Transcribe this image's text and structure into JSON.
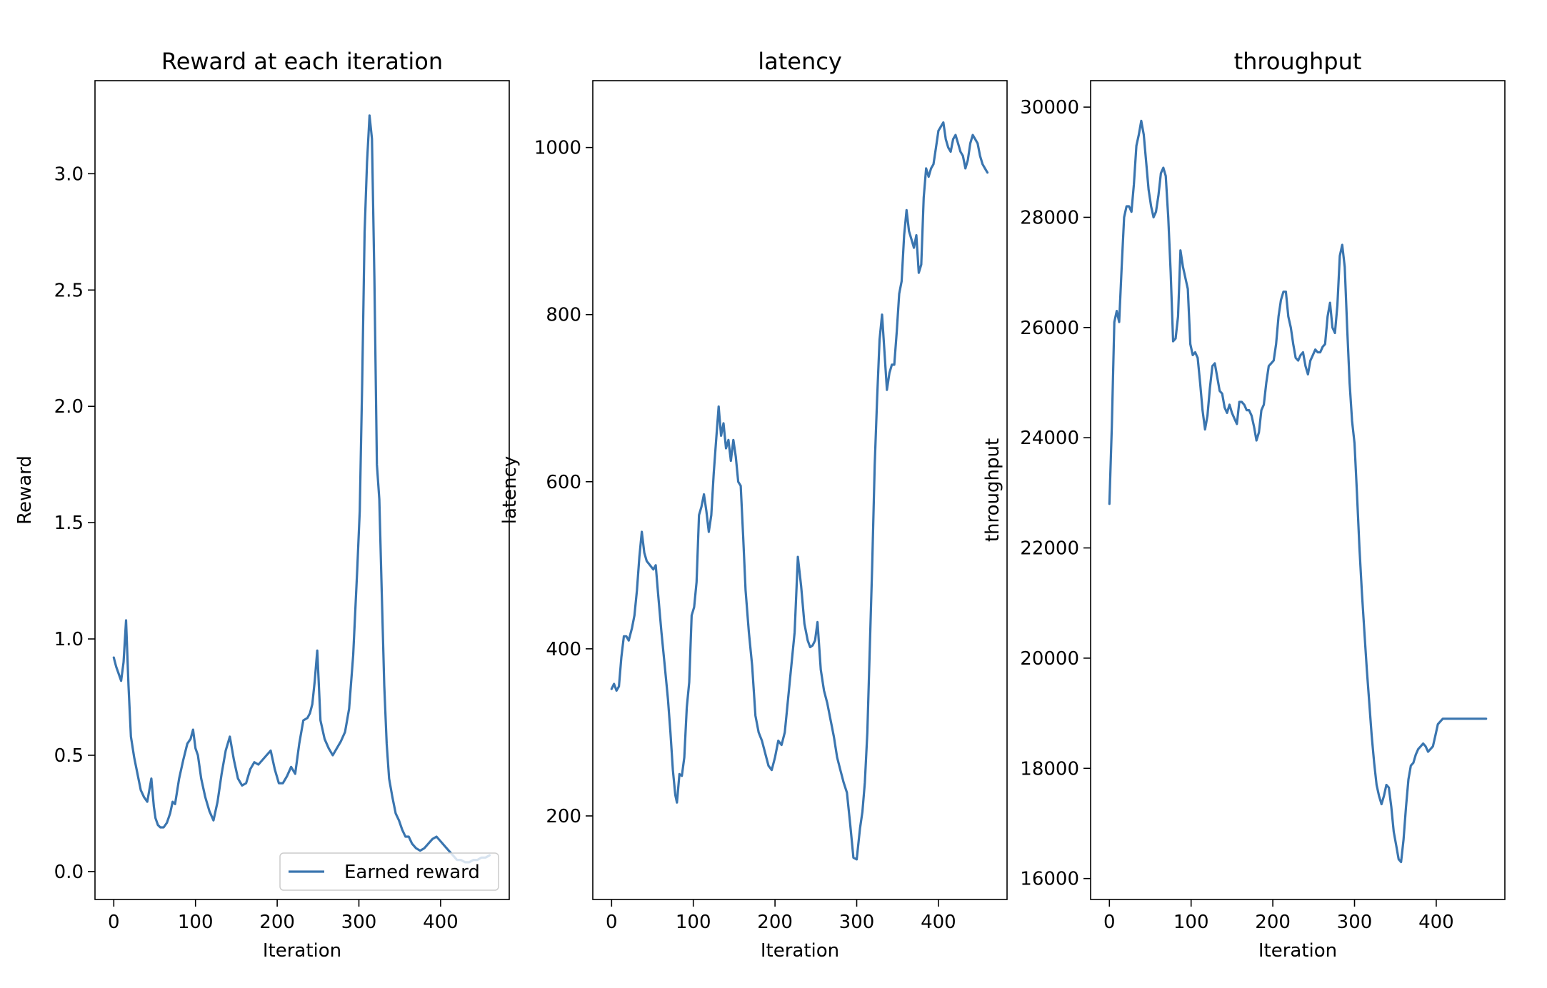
{
  "colors": {
    "series": "#3a75af",
    "axes": "#000000"
  },
  "chart_data": [
    {
      "type": "line",
      "title": "Reward at each iteration",
      "xlabel": "Iteration",
      "ylabel": "Reward",
      "xlim": [
        -23,
        484
      ],
      "ylim": [
        -0.12,
        3.4
      ],
      "xticks": [
        0,
        100,
        200,
        300,
        400
      ],
      "yticks": [
        0.0,
        0.5,
        1.0,
        1.5,
        2.0,
        2.5,
        3.0
      ],
      "ytick_labels": [
        "0.0",
        "0.5",
        "1.0",
        "1.5",
        "2.0",
        "2.5",
        "3.0"
      ],
      "legend": {
        "placement": "lower-right",
        "entries": [
          "Earned reward"
        ]
      },
      "series": [
        {
          "name": "Earned reward",
          "x": [
            0,
            3,
            6,
            9,
            12,
            15,
            18,
            21,
            25,
            29,
            33,
            37,
            41,
            46,
            49,
            51,
            54,
            57,
            61,
            65,
            69,
            72,
            75,
            80,
            85,
            90,
            94,
            97,
            100,
            103,
            107,
            112,
            117,
            122,
            127,
            132,
            137,
            142,
            147,
            152,
            157,
            162,
            167,
            172,
            177,
            182,
            187,
            192,
            197,
            202,
            207,
            212,
            217,
            222,
            227,
            232,
            237,
            240,
            243,
            246,
            249,
            253,
            258,
            263,
            268,
            273,
            278,
            283,
            288,
            293,
            298,
            301,
            304,
            307,
            310,
            313,
            316,
            319,
            322,
            325,
            328,
            331,
            334,
            337,
            341,
            345,
            349,
            353,
            357,
            361,
            365,
            370,
            375,
            380,
            385,
            390,
            395,
            400,
            405,
            410,
            415,
            420,
            425,
            430,
            435,
            440,
            445,
            450,
            455,
            460
          ],
          "values": [
            0.92,
            0.88,
            0.85,
            0.82,
            0.9,
            1.08,
            0.8,
            0.58,
            0.49,
            0.42,
            0.35,
            0.32,
            0.3,
            0.4,
            0.28,
            0.23,
            0.2,
            0.19,
            0.19,
            0.21,
            0.25,
            0.3,
            0.29,
            0.4,
            0.48,
            0.55,
            0.57,
            0.61,
            0.53,
            0.5,
            0.4,
            0.32,
            0.26,
            0.22,
            0.3,
            0.42,
            0.52,
            0.58,
            0.48,
            0.4,
            0.37,
            0.38,
            0.44,
            0.47,
            0.46,
            0.48,
            0.5,
            0.52,
            0.44,
            0.38,
            0.38,
            0.41,
            0.45,
            0.42,
            0.55,
            0.65,
            0.66,
            0.68,
            0.72,
            0.82,
            0.95,
            0.65,
            0.57,
            0.53,
            0.5,
            0.53,
            0.56,
            0.6,
            0.7,
            0.93,
            1.3,
            1.55,
            2.1,
            2.75,
            3.05,
            3.25,
            3.15,
            2.55,
            1.75,
            1.6,
            1.2,
            0.8,
            0.55,
            0.4,
            0.32,
            0.25,
            0.22,
            0.18,
            0.15,
            0.15,
            0.12,
            0.1,
            0.09,
            0.1,
            0.12,
            0.14,
            0.15,
            0.13,
            0.11,
            0.09,
            0.07,
            0.05,
            0.05,
            0.04,
            0.04,
            0.05,
            0.05,
            0.06,
            0.06,
            0.07
          ]
        }
      ]
    },
    {
      "type": "line",
      "title": "latency",
      "xlabel": "Iteration",
      "ylabel": "latency",
      "xlim": [
        -23,
        484
      ],
      "ylim": [
        100,
        1080
      ],
      "xticks": [
        0,
        100,
        200,
        300,
        400
      ],
      "yticks": [
        200,
        400,
        600,
        800,
        1000
      ],
      "ytick_labels": [
        "200",
        "400",
        "600",
        "800",
        "1000"
      ],
      "series": [
        {
          "x": [
            0,
            3,
            6,
            9,
            12,
            15,
            18,
            21,
            25,
            28,
            31,
            34,
            37,
            40,
            43,
            47,
            51,
            54,
            57,
            61,
            65,
            69,
            72,
            75,
            78,
            80,
            83,
            86,
            89,
            92,
            95,
            98,
            101,
            104,
            107,
            110,
            113,
            116,
            119,
            122,
            125,
            128,
            131,
            134,
            137,
            140,
            143,
            146,
            149,
            152,
            155,
            158,
            161,
            164,
            168,
            172,
            176,
            180,
            184,
            188,
            192,
            196,
            200,
            204,
            208,
            212,
            216,
            220,
            224,
            228,
            232,
            236,
            240,
            243,
            246,
            249,
            252,
            256,
            260,
            264,
            268,
            272,
            276,
            280,
            284,
            288,
            292,
            296,
            300,
            304,
            307,
            310,
            313,
            316,
            319,
            322,
            325,
            328,
            331,
            334,
            337,
            340,
            343,
            346,
            349,
            352,
            355,
            358,
            361,
            364,
            367,
            370,
            373,
            376,
            379,
            382,
            385,
            388,
            391,
            394,
            397,
            400,
            403,
            406,
            409,
            412,
            415,
            418,
            421,
            424,
            427,
            430,
            433,
            436,
            439,
            442,
            445,
            448,
            451,
            454,
            457,
            460
          ],
          "values": [
            352,
            358,
            350,
            355,
            390,
            415,
            415,
            410,
            425,
            440,
            470,
            510,
            540,
            515,
            505,
            500,
            495,
            500,
            465,
            420,
            380,
            340,
            300,
            255,
            225,
            216,
            250,
            248,
            270,
            330,
            360,
            440,
            450,
            480,
            560,
            570,
            585,
            565,
            540,
            560,
            610,
            650,
            690,
            655,
            670,
            640,
            650,
            625,
            650,
            630,
            600,
            595,
            535,
            470,
            420,
            380,
            320,
            300,
            290,
            275,
            260,
            255,
            270,
            290,
            285,
            300,
            340,
            380,
            420,
            510,
            475,
            430,
            410,
            402,
            404,
            410,
            432,
            375,
            350,
            335,
            315,
            295,
            270,
            255,
            240,
            228,
            190,
            150,
            148,
            185,
            205,
            240,
            300,
            400,
            500,
            620,
            700,
            770,
            800,
            755,
            710,
            730,
            740,
            740,
            780,
            825,
            840,
            895,
            925,
            900,
            890,
            880,
            895,
            850,
            860,
            940,
            975,
            965,
            975,
            980,
            1000,
            1020,
            1025,
            1030,
            1010,
            1000,
            995,
            1010,
            1015,
            1005,
            995,
            990,
            975,
            985,
            1005,
            1015,
            1010,
            1005,
            990,
            980,
            975,
            970
          ]
        }
      ]
    },
    {
      "type": "line",
      "title": "throughput",
      "xlabel": "Iteration",
      "ylabel": "throughput",
      "xlim": [
        -23,
        484
      ],
      "ylim": [
        15620,
        30480
      ],
      "xticks": [
        0,
        100,
        200,
        300,
        400
      ],
      "yticks": [
        16000,
        18000,
        20000,
        22000,
        24000,
        26000,
        28000,
        30000
      ],
      "ytick_labels": [
        "16000",
        "18000",
        "20000",
        "22000",
        "24000",
        "26000",
        "28000",
        "30000"
      ],
      "series": [
        {
          "x": [
            0,
            3,
            6,
            9,
            12,
            15,
            18,
            21,
            24,
            27,
            30,
            33,
            36,
            39,
            42,
            45,
            48,
            51,
            54,
            57,
            60,
            63,
            66,
            69,
            72,
            75,
            78,
            81,
            84,
            87,
            90,
            93,
            96,
            99,
            102,
            105,
            108,
            111,
            114,
            117,
            120,
            123,
            126,
            129,
            132,
            135,
            138,
            141,
            144,
            147,
            150,
            153,
            156,
            159,
            162,
            165,
            168,
            171,
            174,
            177,
            180,
            183,
            186,
            189,
            192,
            195,
            198,
            201,
            204,
            207,
            210,
            213,
            216,
            219,
            222,
            225,
            228,
            231,
            234,
            237,
            240,
            243,
            246,
            249,
            252,
            255,
            258,
            261,
            264,
            267,
            270,
            273,
            276,
            279,
            282,
            285,
            288,
            291,
            294,
            297,
            300,
            303,
            306,
            309,
            312,
            315,
            318,
            321,
            324,
            327,
            330,
            333,
            336,
            339,
            342,
            345,
            348,
            351,
            354,
            357,
            360,
            363,
            366,
            369,
            372,
            375,
            378,
            381,
            384,
            387,
            390,
            393,
            396,
            399,
            402,
            405,
            408,
            411,
            414,
            417,
            420,
            423,
            426,
            429,
            432,
            435,
            438,
            441,
            444,
            447,
            450,
            453,
            456,
            459,
            461
          ],
          "values": [
            22800,
            24200,
            26100,
            26300,
            26100,
            27100,
            28000,
            28200,
            28200,
            28100,
            28600,
            29300,
            29500,
            29750,
            29500,
            29000,
            28500,
            28200,
            28000,
            28100,
            28400,
            28800,
            28900,
            28750,
            28000,
            27000,
            25750,
            25800,
            26200,
            27400,
            27100,
            26900,
            26700,
            25700,
            25500,
            25550,
            25450,
            25000,
            24500,
            24150,
            24400,
            24900,
            25300,
            25350,
            25100,
            24850,
            24800,
            24550,
            24450,
            24600,
            24450,
            24350,
            24250,
            24650,
            24650,
            24600,
            24500,
            24500,
            24400,
            24200,
            23950,
            24100,
            24500,
            24600,
            25000,
            25300,
            25350,
            25400,
            25700,
            26200,
            26500,
            26650,
            26650,
            26200,
            26000,
            25700,
            25450,
            25400,
            25500,
            25550,
            25300,
            25150,
            25400,
            25500,
            25600,
            25550,
            25550,
            25650,
            25700,
            26200,
            26450,
            26000,
            25900,
            26400,
            27300,
            27500,
            27100,
            26000,
            25000,
            24300,
            23900,
            23000,
            22000,
            21200,
            20500,
            19800,
            19200,
            18600,
            18100,
            17700,
            17500,
            17350,
            17500,
            17700,
            17650,
            17300,
            16850,
            16600,
            16350,
            16300,
            16700,
            17300,
            17800,
            18050,
            18100,
            18250,
            18350,
            18400,
            18450,
            18400,
            18300,
            18350,
            18400,
            18600,
            18800,
            18850,
            18900,
            18900,
            18900,
            18900,
            18900,
            18900,
            18900,
            18900,
            18900,
            18900,
            18900,
            18900,
            18900,
            18900,
            18900,
            18900,
            18900,
            18900,
            18900
          ]
        }
      ]
    }
  ]
}
